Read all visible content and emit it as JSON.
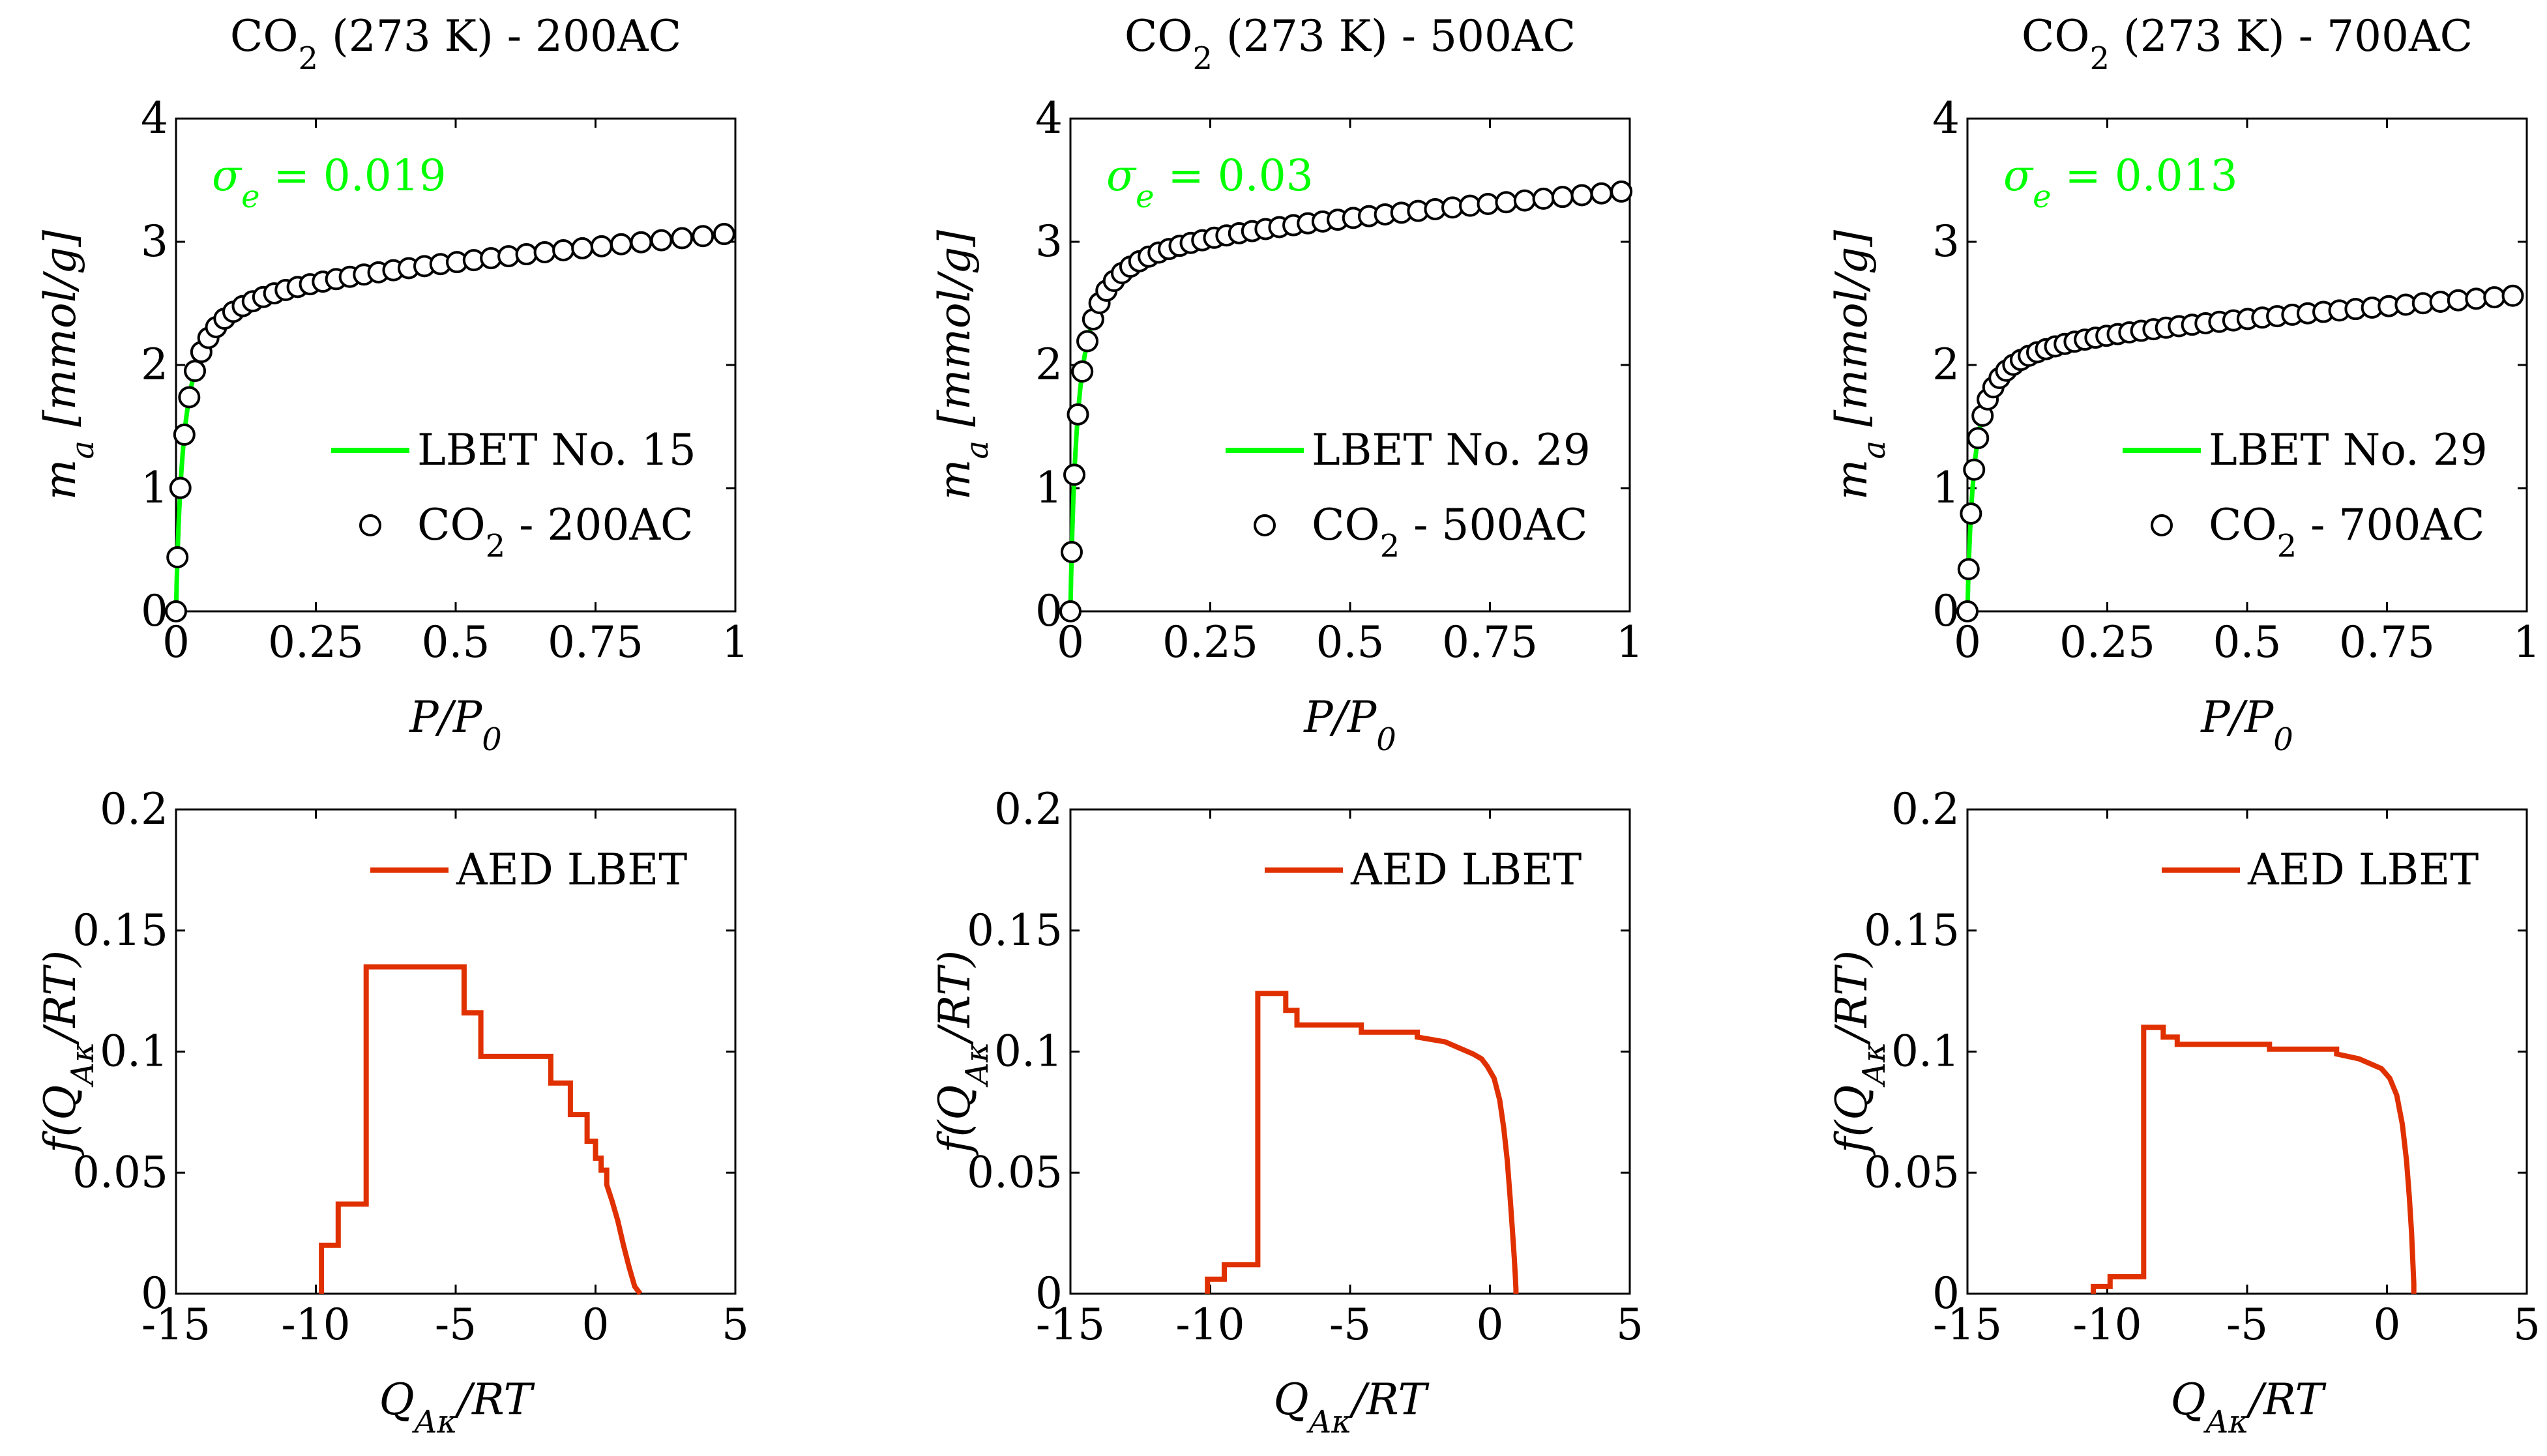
{
  "colors": {
    "fit": "#00ff00",
    "aed": "#e03000",
    "axis": "#000000",
    "marker": "#000000"
  },
  "chart_data": [
    {
      "type": "scatter",
      "panel": "isotherm-200AC",
      "title": {
        "main": "CO",
        "sub": "2",
        "rest": " (273 K) - 200AC"
      },
      "xlabel": {
        "main": "P/P",
        "sub": "0"
      },
      "ylabel": {
        "main": "m",
        "sub": "a",
        "rest": " [mmol/g]"
      },
      "xlim": [
        0,
        1
      ],
      "ylim": [
        0,
        4
      ],
      "xticks": [
        0,
        0.25,
        0.5,
        0.75,
        1
      ],
      "yticks": [
        0,
        1,
        2,
        3,
        4
      ],
      "xtick_labels": [
        "0",
        "0.25",
        "0.5",
        "0.75",
        "1"
      ],
      "ytick_labels": [
        "0",
        "1",
        "2",
        "3",
        "4"
      ],
      "annotation": {
        "symbol": "σ",
        "sub": "e",
        "rest": " = 0.019"
      },
      "legend": [
        {
          "label": "LBET No. 15",
          "kind": "line"
        },
        {
          "label_main": "CO",
          "label_sub": "2",
          "label_rest": " - 200AC",
          "kind": "marker"
        }
      ],
      "legend_placement": "bottom-right",
      "isotherm": {
        "a": 0.4075,
        "b": 0.0133,
        "c": 2.7,
        "n": 42,
        "x_max": 0.98
      }
    },
    {
      "type": "scatter",
      "panel": "isotherm-500AC",
      "title": {
        "main": "CO",
        "sub": "2",
        "rest": " (273 K) - 500AC"
      },
      "xlabel": {
        "main": "P/P",
        "sub": "0"
      },
      "ylabel": {
        "main": "m",
        "sub": "a",
        "rest": " [mmol/g]"
      },
      "xlim": [
        0,
        1
      ],
      "ylim": [
        0,
        4
      ],
      "xticks": [
        0,
        0.25,
        0.5,
        0.75,
        1
      ],
      "yticks": [
        0,
        1,
        2,
        3,
        4
      ],
      "xtick_labels": [
        "0",
        "0.25",
        "0.5",
        "0.75",
        "1"
      ],
      "ytick_labels": [
        "0",
        "1",
        "2",
        "3",
        "4"
      ],
      "annotation": {
        "symbol": "σ",
        "sub": "e",
        "rest": " = 0.03"
      },
      "legend": [
        {
          "label": "LBET No. 29",
          "kind": "line"
        },
        {
          "label_main": "CO",
          "label_sub": "2",
          "label_rest": " - 500AC",
          "kind": "marker"
        }
      ],
      "legend_placement": "bottom-right",
      "isotherm": {
        "a": 0.372,
        "b": 0.0125,
        "c": 3.08,
        "n": 45,
        "x_max": 0.985
      }
    },
    {
      "type": "scatter",
      "panel": "isotherm-700AC",
      "title": {
        "main": "CO",
        "sub": "2",
        "rest": " (273 K) - 700AC"
      },
      "xlabel": {
        "main": "P/P",
        "sub": "0"
      },
      "ylabel": {
        "main": "m",
        "sub": "a",
        "rest": " [mmol/g]"
      },
      "xlim": [
        0,
        1
      ],
      "ylim": [
        0,
        4
      ],
      "xticks": [
        0,
        0.25,
        0.5,
        0.75,
        1
      ],
      "yticks": [
        0,
        1,
        2,
        3,
        4
      ],
      "xtick_labels": [
        "0",
        "0.25",
        "0.5",
        "0.75",
        "1"
      ],
      "ytick_labels": [
        "0",
        "1",
        "2",
        "3",
        "4"
      ],
      "annotation": {
        "symbol": "σ",
        "sub": "e",
        "rest": " = 0.013"
      },
      "legend": [
        {
          "label": "LBET No. 29",
          "kind": "line"
        },
        {
          "label_main": "CO",
          "label_sub": "2",
          "label_rest": " - 700AC",
          "kind": "marker"
        }
      ],
      "legend_placement": "bottom-right",
      "isotherm": {
        "a": 0.347,
        "b": 0.0115,
        "c": 2.25,
        "n": 48,
        "x_max": 0.975
      }
    },
    {
      "type": "line",
      "panel": "aed-200AC",
      "xlabel": {
        "main": "Q",
        "sub": "Aκ",
        "rest": "/RT"
      },
      "ylabel": {
        "main": "f(Q",
        "sub": "Aκ",
        "rest": "/RT)"
      },
      "xlim": [
        -15,
        5
      ],
      "ylim": [
        0,
        0.2
      ],
      "xticks": [
        -15,
        -10,
        -5,
        0,
        5
      ],
      "yticks": [
        0,
        0.05,
        0.1,
        0.15,
        0.2
      ],
      "xtick_labels": [
        "-15",
        "-10",
        "-5",
        "0",
        "5"
      ],
      "ytick_labels": [
        "0",
        "0.05",
        "0.1",
        "0.15",
        "0.2"
      ],
      "legend": [
        {
          "label": "AED LBET",
          "kind": "line"
        }
      ],
      "legend_placement": "top-right",
      "x": [
        -9.8,
        -9.8,
        -9.2,
        -9.2,
        -8.2,
        -8.2,
        -4.7,
        -4.7,
        -4.1,
        -4.1,
        -1.6,
        -1.6,
        -0.9,
        -0.9,
        -0.3,
        -0.3,
        0.0,
        0.0,
        0.2,
        0.2,
        0.4,
        0.4,
        0.6,
        0.8,
        1.0,
        1.2,
        1.4,
        1.6
      ],
      "y": [
        0,
        0.02,
        0.02,
        0.037,
        0.037,
        0.135,
        0.135,
        0.116,
        0.116,
        0.098,
        0.098,
        0.087,
        0.087,
        0.074,
        0.074,
        0.063,
        0.063,
        0.056,
        0.056,
        0.051,
        0.051,
        0.045,
        0.038,
        0.03,
        0.02,
        0.011,
        0.003,
        0
      ]
    },
    {
      "type": "line",
      "panel": "aed-500AC",
      "xlabel": {
        "main": "Q",
        "sub": "Aκ",
        "rest": "/RT"
      },
      "ylabel": {
        "main": "f(Q",
        "sub": "Aκ",
        "rest": "/RT)"
      },
      "xlim": [
        -15,
        5
      ],
      "ylim": [
        0,
        0.2
      ],
      "xticks": [
        -15,
        -10,
        -5,
        0,
        5
      ],
      "yticks": [
        0,
        0.05,
        0.1,
        0.15,
        0.2
      ],
      "xtick_labels": [
        "-15",
        "-10",
        "-5",
        "0",
        "5"
      ],
      "ytick_labels": [
        "0",
        "0.05",
        "0.1",
        "0.15",
        "0.2"
      ],
      "legend": [
        {
          "label": "AED LBET",
          "kind": "line"
        }
      ],
      "legend_placement": "top-right",
      "x": [
        -10.1,
        -10.1,
        -9.5,
        -9.5,
        -8.3,
        -8.3,
        -7.3,
        -7.3,
        -6.9,
        -6.9,
        -4.6,
        -4.6,
        -2.6,
        -2.6,
        -1.6,
        -1.2,
        -0.6,
        -0.3,
        -0.1,
        0.15,
        0.35,
        0.5,
        0.62,
        0.72,
        0.8,
        0.87,
        0.91,
        0.93,
        0.93
      ],
      "y": [
        0,
        0.006,
        0.006,
        0.012,
        0.012,
        0.124,
        0.124,
        0.117,
        0.117,
        0.111,
        0.111,
        0.108,
        0.108,
        0.106,
        0.104,
        0.102,
        0.099,
        0.097,
        0.094,
        0.089,
        0.08,
        0.068,
        0.055,
        0.04,
        0.027,
        0.015,
        0.007,
        0.002,
        0
      ]
    },
    {
      "type": "line",
      "panel": "aed-700AC",
      "xlabel": {
        "main": "Q",
        "sub": "Aκ",
        "rest": "/RT"
      },
      "ylabel": {
        "main": "f(Q",
        "sub": "Aκ",
        "rest": "/RT)"
      },
      "xlim": [
        -15,
        5
      ],
      "ylim": [
        0,
        0.2
      ],
      "xticks": [
        -15,
        -10,
        -5,
        0,
        5
      ],
      "yticks": [
        0,
        0.05,
        0.1,
        0.15,
        0.2
      ],
      "xtick_labels": [
        "-15",
        "-10",
        "-5",
        "0",
        "5"
      ],
      "ytick_labels": [
        "0",
        "0.05",
        "0.1",
        "0.15",
        "0.2"
      ],
      "legend": [
        {
          "label": "AED LBET",
          "kind": "line"
        }
      ],
      "legend_placement": "top-right",
      "x": [
        -10.5,
        -10.5,
        -9.9,
        -9.9,
        -8.7,
        -8.7,
        -8.0,
        -8.0,
        -7.5,
        -7.5,
        -4.2,
        -4.2,
        -1.8,
        -1.8,
        -1.0,
        -0.6,
        -0.2,
        0.1,
        0.35,
        0.55,
        0.7,
        0.8,
        0.88,
        0.93,
        0.96,
        0.96
      ],
      "y": [
        0,
        0.003,
        0.003,
        0.007,
        0.007,
        0.11,
        0.11,
        0.106,
        0.106,
        0.103,
        0.103,
        0.101,
        0.101,
        0.099,
        0.097,
        0.095,
        0.093,
        0.089,
        0.082,
        0.07,
        0.055,
        0.04,
        0.025,
        0.012,
        0.004,
        0
      ]
    }
  ]
}
